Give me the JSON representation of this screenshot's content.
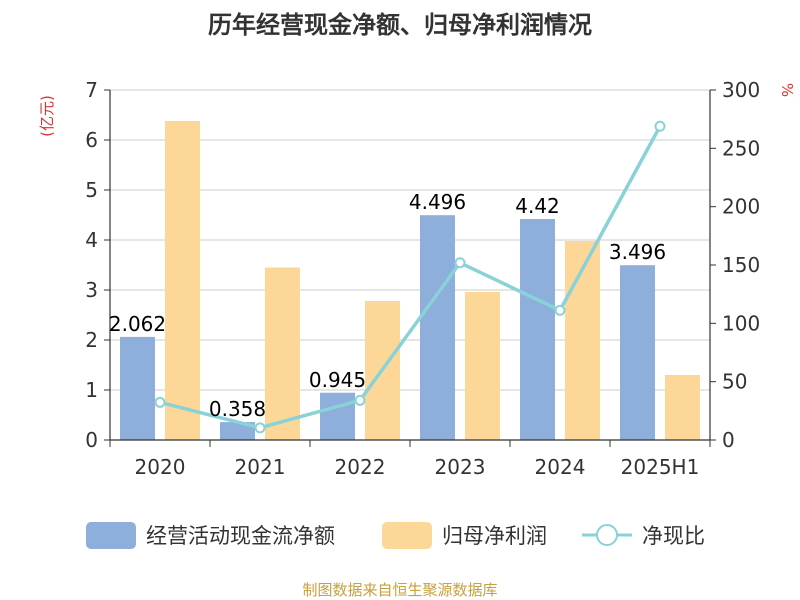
{
  "chart_data": {
    "type": "bar",
    "title": "历年经营现金净额、归母净利润情况",
    "categories": [
      "2020",
      "2021",
      "2022",
      "2023",
      "2024",
      "2025H1"
    ],
    "series": [
      {
        "name": "经营活动现金流净额",
        "type": "bar",
        "axis": "left",
        "color": "#8eaedb",
        "values": [
          2.062,
          0.358,
          0.945,
          4.496,
          4.42,
          3.496
        ],
        "labels": [
          "2.062",
          "0.358",
          "0.945",
          "4.496",
          "4.42",
          "3.496"
        ]
      },
      {
        "name": "归母净利润",
        "type": "bar",
        "axis": "left",
        "color": "#fdd797",
        "values": [
          6.38,
          3.45,
          2.78,
          2.96,
          3.98,
          1.3
        ]
      },
      {
        "name": "净现比",
        "type": "line",
        "axis": "right",
        "color": "#88d2d8",
        "values": [
          32.3,
          10.4,
          34.0,
          151.9,
          111.1,
          268.9
        ]
      }
    ],
    "left_axis": {
      "unit": "(亿元)",
      "min": 0,
      "max": 7,
      "ticks": [
        "0",
        "1",
        "2",
        "3",
        "4",
        "5",
        "6",
        "7"
      ]
    },
    "right_axis": {
      "unit": "%",
      "min": 0,
      "max": 300,
      "ticks": [
        "0",
        "50",
        "100",
        "150",
        "200",
        "250",
        "300"
      ]
    },
    "grid": true,
    "legend_position": "bottom"
  },
  "source": "制图数据来自恒生聚源数据库"
}
